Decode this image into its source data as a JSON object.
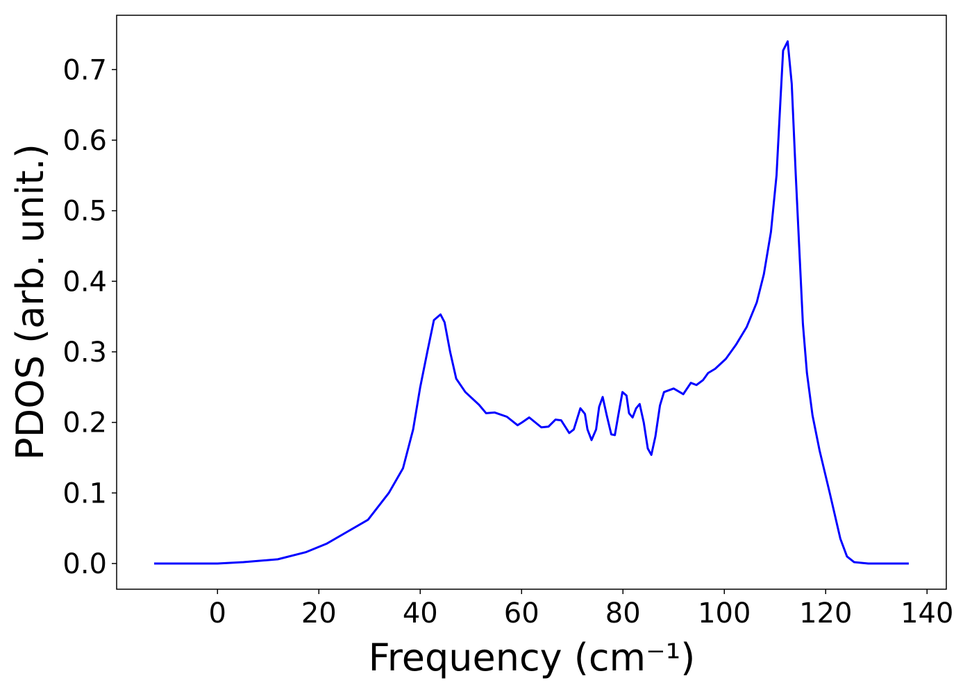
{
  "chart_data": {
    "type": "line",
    "xlabel": "Frequency (cm⁻¹)",
    "ylabel": "PDOS (arb. unit.)",
    "color": "#0000ff",
    "x": [
      -12.5,
      0,
      5.1,
      11.9,
      17.4,
      21.5,
      25.6,
      29.7,
      33.8,
      36.6,
      38.6,
      40.0,
      41.4,
      42.7,
      44.0,
      44.8,
      45.9,
      47.1,
      48.9,
      51.6,
      53.0,
      54.7,
      57.1,
      59.2,
      60.1,
      61.5,
      63.9,
      65.3,
      66.7,
      67.8,
      69.4,
      70.3,
      71.6,
      72.5,
      73.0,
      73.8,
      74.7,
      75.3,
      76.0,
      76.8,
      77.7,
      78.4,
      79.2,
      79.9,
      80.7,
      81.2,
      81.9,
      82.6,
      83.3,
      84.1,
      84.9,
      85.6,
      86.4,
      87.3,
      88.1,
      90.0,
      91.9,
      93.4,
      94.5,
      95.8,
      96.8,
      98.2,
      100.3,
      102.3,
      104.4,
      106.4,
      107.8,
      109.2,
      110.3,
      111.1,
      111.6,
      112.5,
      113.3,
      114.1,
      114.9,
      115.5,
      116.3,
      117.4,
      118.8,
      120.8,
      122.9,
      124.2,
      125.6,
      128.4,
      136.4
    ],
    "values": [
      0,
      0,
      0.002,
      0.006,
      0.016,
      0.028,
      0.045,
      0.062,
      0.1,
      0.135,
      0.19,
      0.25,
      0.3,
      0.345,
      0.353,
      0.342,
      0.3,
      0.262,
      0.243,
      0.225,
      0.213,
      0.214,
      0.208,
      0.196,
      0.2,
      0.207,
      0.193,
      0.194,
      0.204,
      0.203,
      0.185,
      0.19,
      0.22,
      0.212,
      0.19,
      0.175,
      0.19,
      0.222,
      0.236,
      0.21,
      0.183,
      0.182,
      0.215,
      0.243,
      0.238,
      0.213,
      0.207,
      0.22,
      0.226,
      0.2,
      0.163,
      0.154,
      0.18,
      0.224,
      0.243,
      0.248,
      0.24,
      0.256,
      0.253,
      0.26,
      0.27,
      0.276,
      0.29,
      0.31,
      0.335,
      0.37,
      0.41,
      0.47,
      0.55,
      0.66,
      0.727,
      0.74,
      0.68,
      0.55,
      0.43,
      0.34,
      0.27,
      0.21,
      0.16,
      0.1,
      0.035,
      0.01,
      0.002,
      0,
      0
    ],
    "xlim": [
      -19.9,
      143.8
    ],
    "xticks": [
      0,
      20,
      40,
      60,
      80,
      100,
      120,
      140
    ],
    "ylim": [
      -0.0364,
      0.777
    ],
    "yticks": [
      {
        "value": 0,
        "label": "0.0"
      },
      0.1,
      0.2,
      0.3,
      0.4,
      0.5,
      0.6,
      0.7
    ],
    "grid": false
  }
}
